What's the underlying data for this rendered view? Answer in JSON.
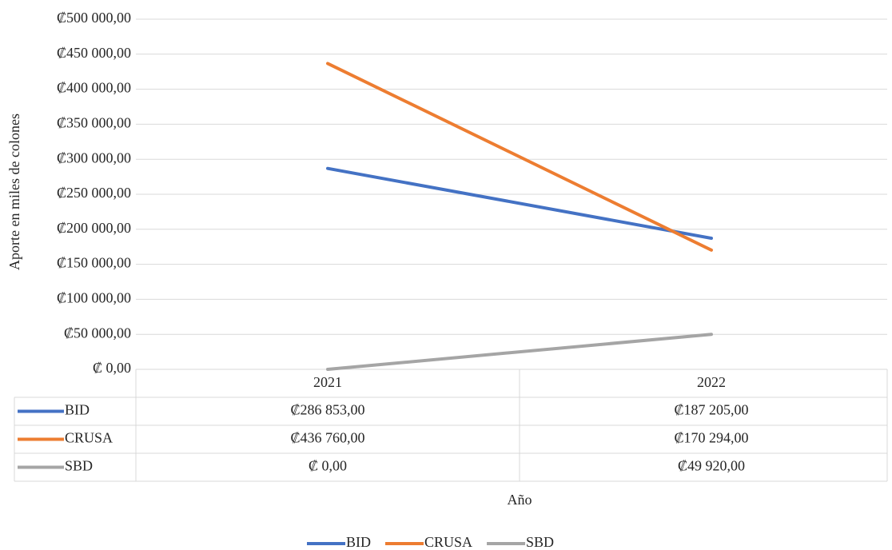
{
  "chart_data": {
    "type": "line",
    "y_label": "Aporte en miles de colones",
    "x_label": "Año",
    "categories": [
      "2021",
      "2022"
    ],
    "series": [
      {
        "name": "BID",
        "color": "#4472c4",
        "values": [
          286853,
          187205
        ],
        "value_labels": [
          "₡286 853,00",
          "₡187 205,00"
        ]
      },
      {
        "name": "CRUSA",
        "color": "#ed7d31",
        "values": [
          436760,
          170294
        ],
        "value_labels": [
          "₡436 760,00",
          "₡170 294,00"
        ]
      },
      {
        "name": "SBD",
        "color": "#a5a5a5",
        "values": [
          0,
          49920
        ],
        "value_labels": [
          "₡ 0,00",
          "₡49 920,00"
        ]
      }
    ],
    "ylim": [
      0,
      500000
    ],
    "yticks": [
      {
        "value": 0,
        "label": "₡ 0,00"
      },
      {
        "value": 50000,
        "label": "₡50 000,00"
      },
      {
        "value": 100000,
        "label": "₡100 000,00"
      },
      {
        "value": 150000,
        "label": "₡150 000,00"
      },
      {
        "value": 200000,
        "label": "₡200 000,00"
      },
      {
        "value": 250000,
        "label": "₡250 000,00"
      },
      {
        "value": 300000,
        "label": "₡300 000,00"
      },
      {
        "value": 350000,
        "label": "₡350 000,00"
      },
      {
        "value": 400000,
        "label": "₡400 000,00"
      },
      {
        "value": 450000,
        "label": "₡450 000,00"
      },
      {
        "value": 500000,
        "label": "₡500 000,00"
      }
    ],
    "grid": true,
    "legend": "bottom"
  }
}
